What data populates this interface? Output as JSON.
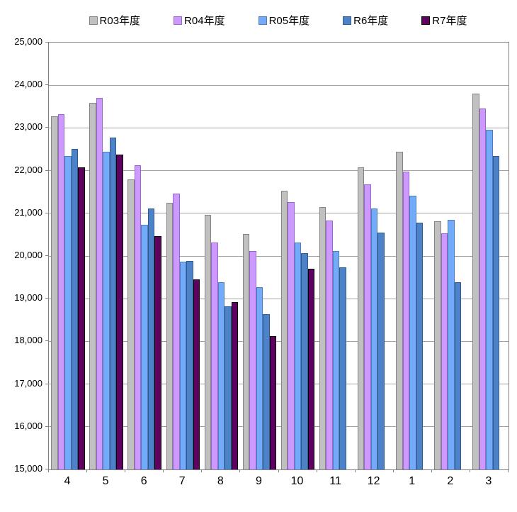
{
  "chart_data": {
    "type": "bar",
    "title": "",
    "xlabel": "",
    "ylabel": "",
    "categories": [
      "4",
      "5",
      "6",
      "7",
      "8",
      "9",
      "10",
      "11",
      "12",
      "1",
      "2",
      "3"
    ],
    "series": [
      {
        "name": "R03年度",
        "color": "#C0C0C0",
        "border_color": "#848484",
        "values": [
          23270,
          23590,
          21790,
          21250,
          20960,
          20520,
          21530,
          21140,
          22080,
          22450,
          20820,
          23800
        ]
      },
      {
        "name": "R04年度",
        "color": "#CC99FF",
        "border_color": "#9966CC",
        "values": [
          23320,
          23710,
          22130,
          21460,
          20320,
          20110,
          21270,
          20830,
          21680,
          21980,
          20540,
          23450
        ]
      },
      {
        "name": "R05年度",
        "color": "#74AAFA",
        "border_color": "#4A7EBB",
        "values": [
          22350,
          22440,
          20730,
          19870,
          19390,
          19270,
          20320,
          20120,
          21110,
          21420,
          20840,
          22960
        ]
      },
      {
        "name": "R6年度",
        "color": "#4E82C8",
        "border_color": "#2E5A8F",
        "values": [
          22510,
          22780,
          21120,
          19880,
          18820,
          18630,
          20060,
          19730,
          20550,
          20780,
          19390,
          22340
        ]
      },
      {
        "name": "R7年度",
        "color": "#600060",
        "border_color": "#000000",
        "values": [
          22080,
          22380,
          20470,
          19450,
          18920,
          18120,
          19700,
          null,
          null,
          null,
          null,
          null
        ]
      }
    ],
    "ylim": [
      15000,
      25000
    ],
    "ytick_step": 1000,
    "ytick_labels": [
      "25,000",
      "24,000",
      "23,000",
      "22,000",
      "21,000",
      "20,000",
      "19,000",
      "18,000",
      "17,000",
      "16,000",
      "15,000"
    ],
    "grid": true,
    "legend_position": "top",
    "grid_color": "#A3A3A3",
    "axis_color": "#808080",
    "background_color": "#FFFFFF"
  }
}
